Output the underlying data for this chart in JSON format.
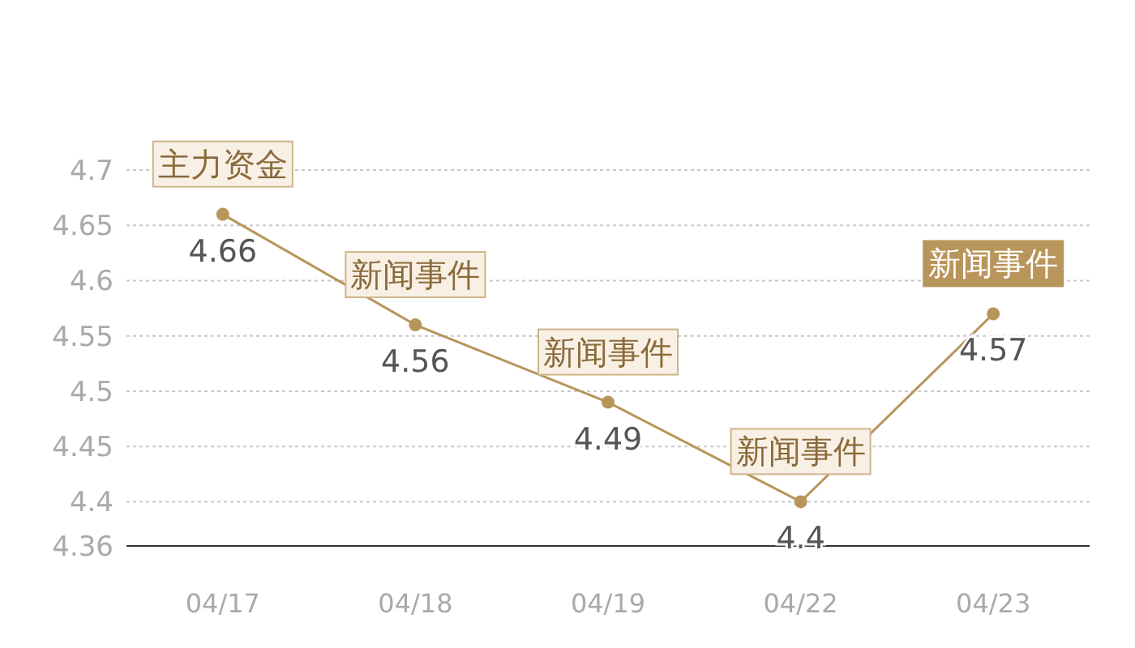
{
  "chart_data": {
    "type": "line",
    "categories": [
      "04/17",
      "04/18",
      "04/19",
      "04/22",
      "04/23"
    ],
    "series": [
      {
        "color": "#b8955a",
        "values": [
          4.66,
          4.56,
          4.49,
          4.4,
          4.57
        ]
      }
    ],
    "ylim": [
      4.36,
      4.7
    ],
    "yticks": [
      4.36,
      4.4,
      4.45,
      4.5,
      4.55,
      4.6,
      4.65,
      4.7
    ],
    "grid": "y",
    "marker": "circle",
    "line_style": "solid",
    "data_labels": true,
    "annotations": [
      {
        "text": "主力资金",
        "x": "04/17",
        "y": 4.66
      },
      {
        "text": "新闻事件",
        "x": "04/18",
        "y": 4.56
      },
      {
        "text": "新闻事件",
        "x": "04/19",
        "y": 4.49
      },
      {
        "text": "新闻事件",
        "x": "04/22",
        "y": 4.4
      },
      {
        "text": "新闻事件",
        "x": "04/23",
        "y": 4.57
      }
    ]
  }
}
